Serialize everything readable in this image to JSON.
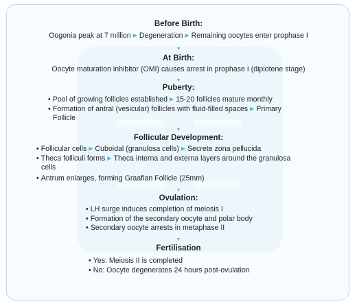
{
  "before_birth": {
    "title": "Before Birth:",
    "items": [
      "Oogonia peak at 7 million",
      "Degeneration",
      "Remaining oocytes enter prophase I"
    ]
  },
  "at_birth": {
    "title": "At Birth:",
    "text": "Oocyte maturation inhibitor (OMI) causes arrest in prophase I (diplotene stage)"
  },
  "puberty": {
    "title": "Puberty:",
    "line1_a": "Pool of growing follicles established",
    "line1_b": "15-20 follicles mature monthly",
    "line2_a": "Formation of antral (vesicular) follicles with fluid-filled spaces",
    "line2_b": "Primary",
    "line3": "Follicle"
  },
  "follicular": {
    "title": "Follicular Development:",
    "line1_a": "Follicular cells",
    "line1_b": "Cuboidal (granulosa cells)",
    "line1_c": "Secrete zona pellucida",
    "line2_a": "Theca folliculi forms",
    "line2_b": "Theca interna and externa layers around the granulosa",
    "line3": "cells",
    "line4": "Antrum enlarges, forming Graafian Follicle (25mm)"
  },
  "ovulation": {
    "title": "Ovulation:",
    "items": [
      "LH surge induces completion of meiosis I",
      "Formation of the secondary oocyte and polar body",
      "Secondary oocyte arrests in metaphase II"
    ]
  },
  "fertilisation": {
    "title": "Fertilisation",
    "items": [
      "Yes: Meiosis II is completed",
      "No: Oocyte degenerates 24 hours post-ovulation"
    ]
  },
  "icons": {
    "right_arrow": "right-arrow-icon",
    "down_arrow": "down-arrow-icon",
    "bullet": "bullet-icon"
  },
  "colors": {
    "border": "#b9dcea",
    "accent_arrow": "#57b5d6",
    "panel_bg": "#f7fcfe",
    "text": "#1f2428"
  }
}
